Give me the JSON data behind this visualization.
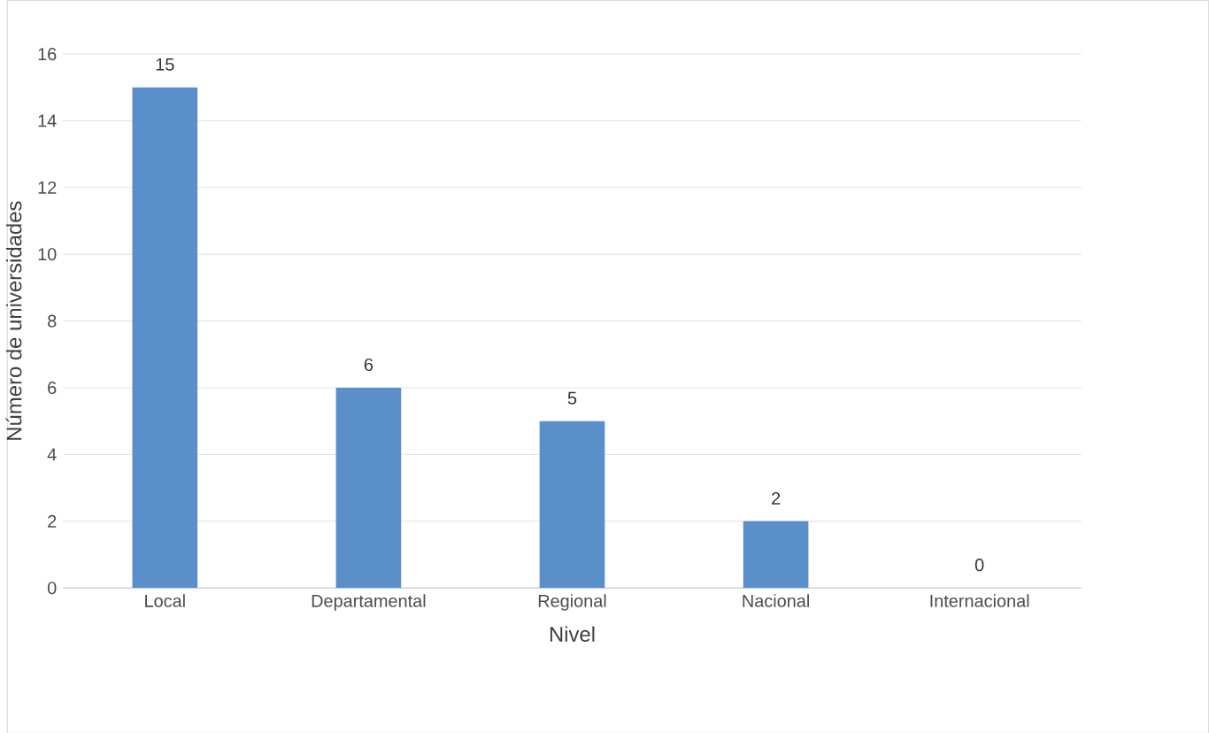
{
  "chart_data": {
    "type": "bar",
    "xlabel": "Nivel",
    "ylabel": "Número de universidades",
    "categories": [
      "Local",
      "Departamental",
      "Regional",
      "Nacional",
      "Internacional"
    ],
    "values": [
      15,
      6,
      5,
      2,
      0
    ],
    "color": "#5b8fc9",
    "ylim": [
      0,
      16
    ],
    "yticks": [
      0,
      2,
      4,
      6,
      8,
      10,
      12,
      14,
      16
    ],
    "grid": "y",
    "data_labels": true
  }
}
